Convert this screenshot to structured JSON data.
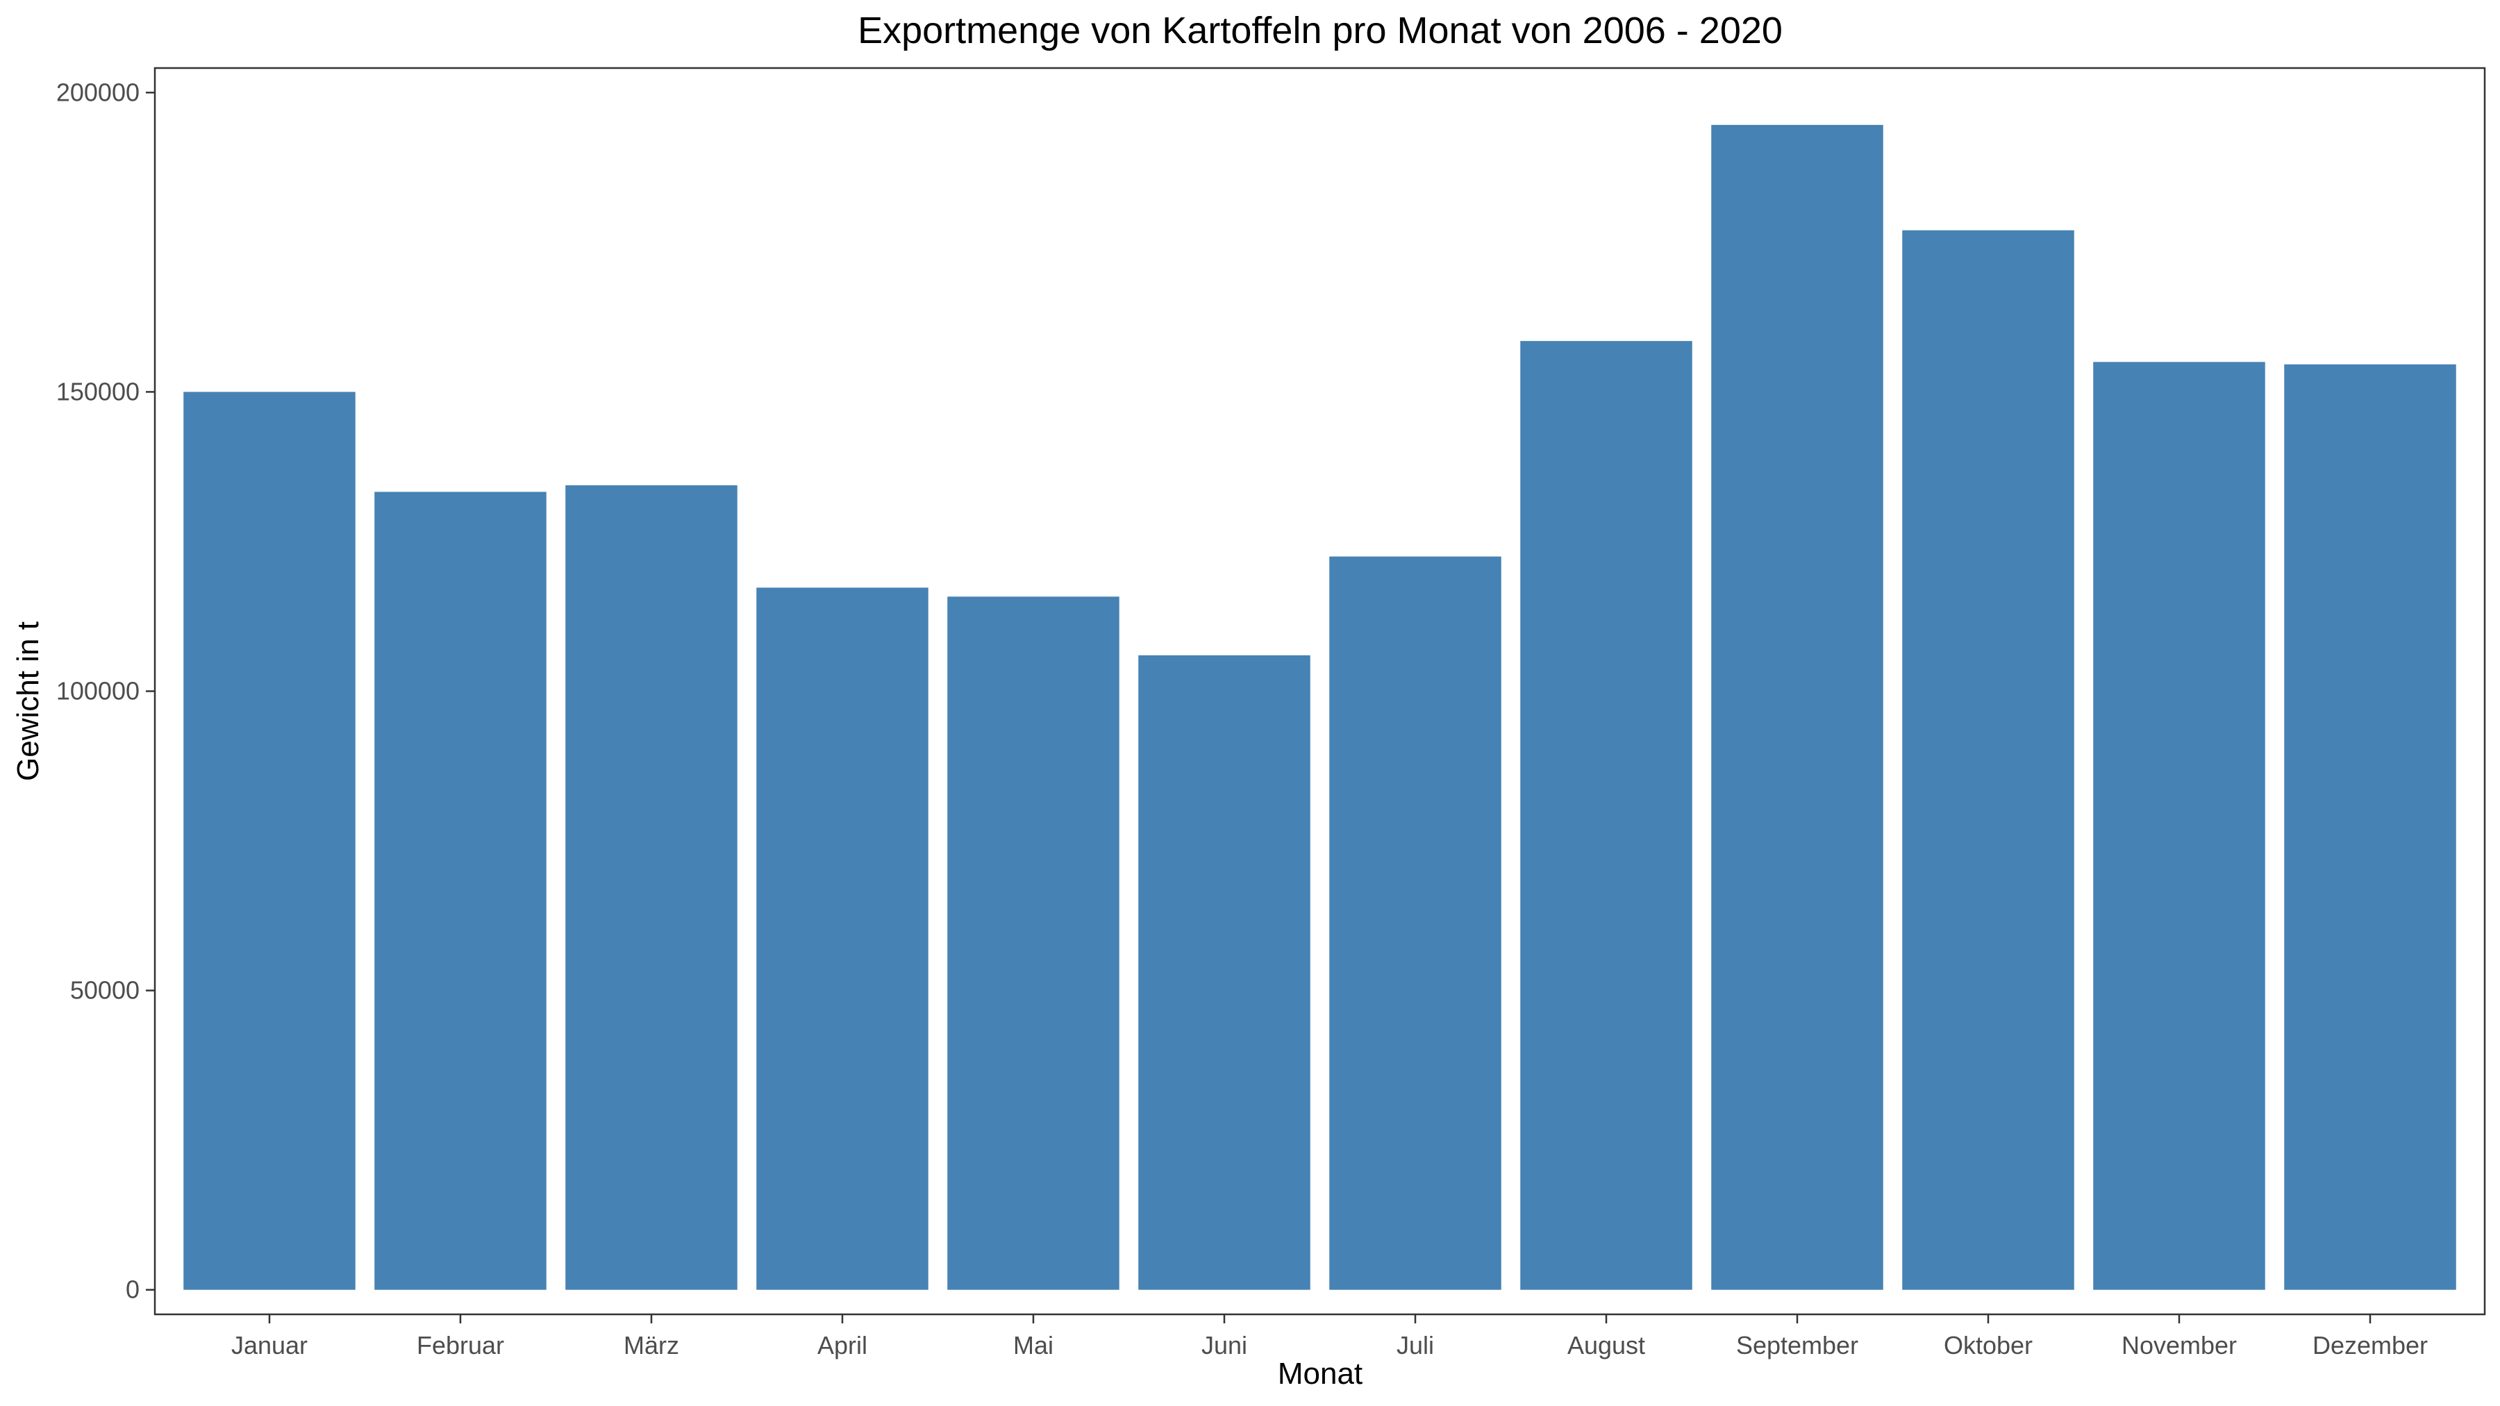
{
  "chart_data": {
    "type": "bar",
    "title": "Exportmenge von Kartoffeln pro Monat von 2006 - 2020",
    "xlabel": "Monat",
    "ylabel": "Gewicht in t",
    "categories": [
      "Januar",
      "Februar",
      "März",
      "April",
      "Mai",
      "Juni",
      "Juli",
      "August",
      "September",
      "Oktober",
      "November",
      "Dezember"
    ],
    "values": [
      150000,
      133300,
      134400,
      117300,
      115800,
      106000,
      122500,
      158500,
      194600,
      177000,
      155000,
      154600
    ],
    "ylim": [
      -4100,
      204100
    ],
    "yticks": [
      0,
      50000,
      100000,
      150000,
      200000
    ],
    "ytick_labels": [
      "0",
      "50000",
      "100000",
      "150000",
      "200000"
    ],
    "bar_color": "#4682b4",
    "grid": false,
    "legend": "none"
  }
}
